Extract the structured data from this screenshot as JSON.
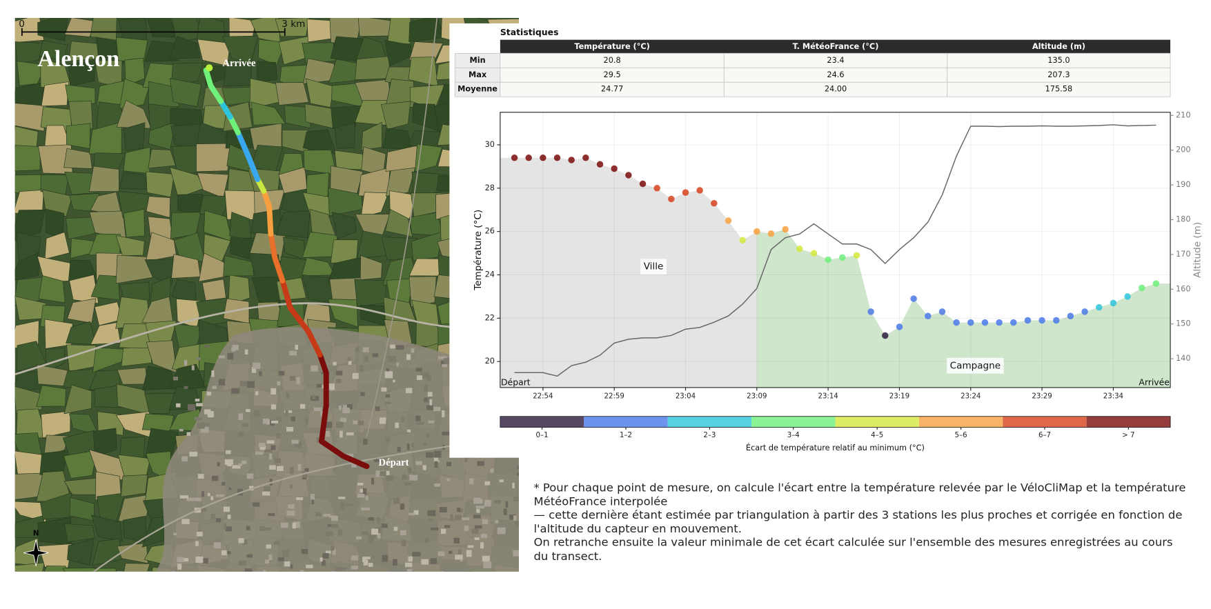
{
  "map": {
    "title": "Alençon",
    "start_label": "Départ",
    "end_label": "Arrivée",
    "scale_start": "0",
    "scale_end": "3 km",
    "north": "N"
  },
  "table": {
    "title": "Statistiques",
    "headers": [
      "Température (°C)",
      "T. MétéoFrance (°C)",
      "Altitude (m)"
    ],
    "rows": [
      {
        "label": "Min",
        "cells": [
          "20.8",
          "23.4",
          "135.0"
        ]
      },
      {
        "label": "Max",
        "cells": [
          "29.5",
          "24.6",
          "207.3"
        ]
      },
      {
        "label": "Moyenne",
        "cells": [
          "24.77",
          "24.00",
          "175.58"
        ]
      }
    ]
  },
  "chart_data": {
    "type": "scatter",
    "ylabel": "Température (°C)",
    "y2label": "Altitude (m)",
    "start_label": "Départ",
    "end_label": "Arrivée",
    "colorbar_label": "Écart de température relatif au minimum (°C)",
    "xlim": [
      "22:51",
      "23:38"
    ],
    "xticks": [
      "22:54",
      "22:59",
      "23:04",
      "23:09",
      "23:14",
      "23:19",
      "23:24",
      "23:29",
      "23:34"
    ],
    "ylim": [
      18.8,
      31.5
    ],
    "yticks": [
      20,
      22,
      24,
      26,
      28,
      30
    ],
    "y2lim": [
      131.7,
      210.9
    ],
    "y2ticks": [
      140,
      150,
      160,
      170,
      180,
      190,
      200,
      210
    ],
    "grid": true,
    "regions": [
      {
        "label": "Ville",
        "from": "22:51",
        "to": "23:09",
        "color": "#e4e4e4"
      },
      {
        "label": "Campagne",
        "from": "23:09",
        "to": "23:38",
        "color": "#cfe6cc"
      }
    ],
    "series": [
      {
        "name": "0–1",
        "color": "#2d1b3d",
        "x": [
          "23:18"
        ],
        "values": [
          21.2
        ]
      },
      {
        "name": "1–2",
        "color": "#4a78e8",
        "x": [
          "23:17",
          "23:19",
          "23:20",
          "23:21",
          "23:22",
          "23:23",
          "23:24",
          "23:25",
          "23:26",
          "23:27",
          "23:28",
          "23:29",
          "23:30",
          "23:31",
          "23:32"
        ],
        "values": [
          22.3,
          21.6,
          22.9,
          22.1,
          22.3,
          21.8,
          21.8,
          21.8,
          21.8,
          21.8,
          21.9,
          21.9,
          21.9,
          22.1,
          22.3
        ]
      },
      {
        "name": "2–3",
        "color": "#2ec4dc",
        "x": [
          "23:33",
          "23:34",
          "23:35"
        ],
        "values": [
          22.5,
          22.7,
          23.0
        ]
      },
      {
        "name": "3–4",
        "color": "#6ef07a",
        "x": [
          "23:14",
          "23:15",
          "23:36",
          "23:37"
        ],
        "values": [
          24.7,
          24.8,
          23.4,
          23.6
        ]
      },
      {
        "name": "4–5",
        "color": "#d4e83c",
        "x": [
          "23:08",
          "23:12",
          "23:13",
          "23:16"
        ],
        "values": [
          25.6,
          25.2,
          25.0,
          24.9
        ]
      },
      {
        "name": "5–6",
        "color": "#f8a040",
        "x": [
          "23:07",
          "23:09",
          "23:10",
          "23:11"
        ],
        "values": [
          26.5,
          26.0,
          25.9,
          26.1
        ]
      },
      {
        "name": "6–7",
        "color": "#d6421c",
        "x": [
          "23:02",
          "23:03",
          "23:04",
          "23:05",
          "23:06"
        ],
        "values": [
          28.0,
          27.5,
          27.8,
          27.9,
          27.3
        ]
      },
      {
        "name": "> 7",
        "color": "#7a0c0c",
        "x": [
          "22:52",
          "22:53",
          "22:54",
          "22:55",
          "22:56",
          "22:57",
          "22:58",
          "22:59",
          "23:00",
          "23:01"
        ],
        "values": [
          29.4,
          29.4,
          29.4,
          29.4,
          29.3,
          29.4,
          29.1,
          28.9,
          28.6,
          28.2
        ]
      },
      {
        "type": "line",
        "axis": "y2",
        "color": "#666666",
        "x": [
          "22:52",
          "22:53",
          "22:54",
          "22:55",
          "22:56",
          "22:57",
          "22:58",
          "22:59",
          "23:00",
          "23:01",
          "23:02",
          "23:03",
          "23:04",
          "23:05",
          "23:06",
          "23:07",
          "23:08",
          "23:09",
          "23:10",
          "23:11",
          "23:12",
          "23:13",
          "23:14",
          "23:15",
          "23:16",
          "23:17",
          "23:18",
          "23:19",
          "23:20",
          "23:21",
          "23:22",
          "23:23",
          "23:24",
          "23:25",
          "23:26",
          "23:27",
          "23:28",
          "23:29",
          "23:30",
          "23:31",
          "23:32",
          "23:33",
          "23:34",
          "23:35",
          "23:36",
          "23:37"
        ],
        "values": [
          136,
          136,
          136,
          135.0,
          138,
          139,
          141,
          144.5,
          145.6,
          146,
          146,
          146.7,
          148.5,
          149,
          150.5,
          152.3,
          155.7,
          160.2,
          171.4,
          174.8,
          175.9,
          178.8,
          175.9,
          173,
          173,
          171.4,
          167.4,
          171.4,
          174.8,
          179.3,
          187.1,
          198.3,
          206.9,
          206.9,
          206.8,
          206.9,
          206.9,
          207.0,
          206.9,
          206.9,
          207.0,
          207.1,
          207.3,
          207.0,
          207.1,
          207.2
        ]
      }
    ]
  },
  "note": [
    "* Pour chaque point de mesure, on calcule l'écart entre la température relevée par le VéloCliMap et la température MétéoFrance interpolée",
    "— cette dernière étant estimée par triangulation à partir des 3 stations les plus proches et corrigée en fonction de l'altitude du capteur en mouvement.",
    "On retranche ensuite la valeur minimale de cet écart calculée sur l'ensemble des mesures enregistrées au cours du transect."
  ]
}
